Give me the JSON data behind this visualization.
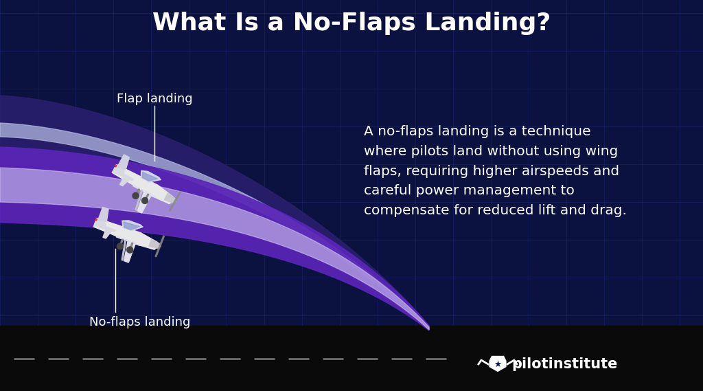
{
  "title": "What Is a No-Flaps Landing?",
  "title_fontsize": 26,
  "title_color": "#ffffff",
  "title_fontweight": "bold",
  "bg_color": "#0b1240",
  "grid_color": "#1a2570",
  "description_text": "A no-flaps landing is a technique\nwhere pilots land without using wing\nflaps, requiring higher airspeeds and\ncareful power management to\ncompensate for reduced lift and drag.",
  "description_color": "#ffffff",
  "description_fontsize": 14.5,
  "label_flap": "Flap landing",
  "label_noflap": "No-flaps landing",
  "label_color": "#ffffff",
  "label_fontsize": 13,
  "runway_color": "#0a0a0a",
  "runway_stripe_color": "#aaaaaa",
  "flap_band_dark": "#2a1f6e",
  "flap_band_light": "#b0b8e0",
  "noflap_band_dark": "#5a25b8",
  "noflap_band_light": "#cbbcee",
  "logo_color": "#ffffff",
  "logo_fontsize": 15
}
